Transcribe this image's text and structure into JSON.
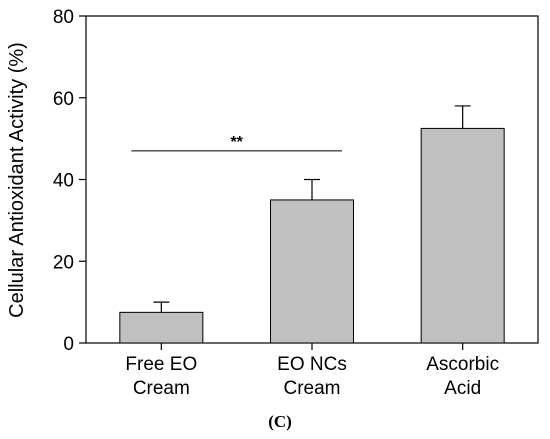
{
  "chart_data": {
    "type": "bar",
    "categories": [
      [
        "Free EO",
        "Cream"
      ],
      [
        "EO NCs",
        "Cream"
      ],
      [
        "Ascorbic",
        "Acid"
      ]
    ],
    "values": [
      7.5,
      35,
      52.5
    ],
    "errors": [
      2.5,
      5,
      5.5
    ],
    "ylabel": "Cellular Antioxidant Activity (%)",
    "xlabel": "",
    "ylim": [
      0,
      80
    ],
    "yticks": [
      0,
      20,
      40,
      60,
      80
    ],
    "bar_color": "#c0c0c0",
    "significance": {
      "from": 0,
      "to": 1,
      "label": "**",
      "y": 47
    },
    "panel_label": "(C)",
    "grid": false
  }
}
